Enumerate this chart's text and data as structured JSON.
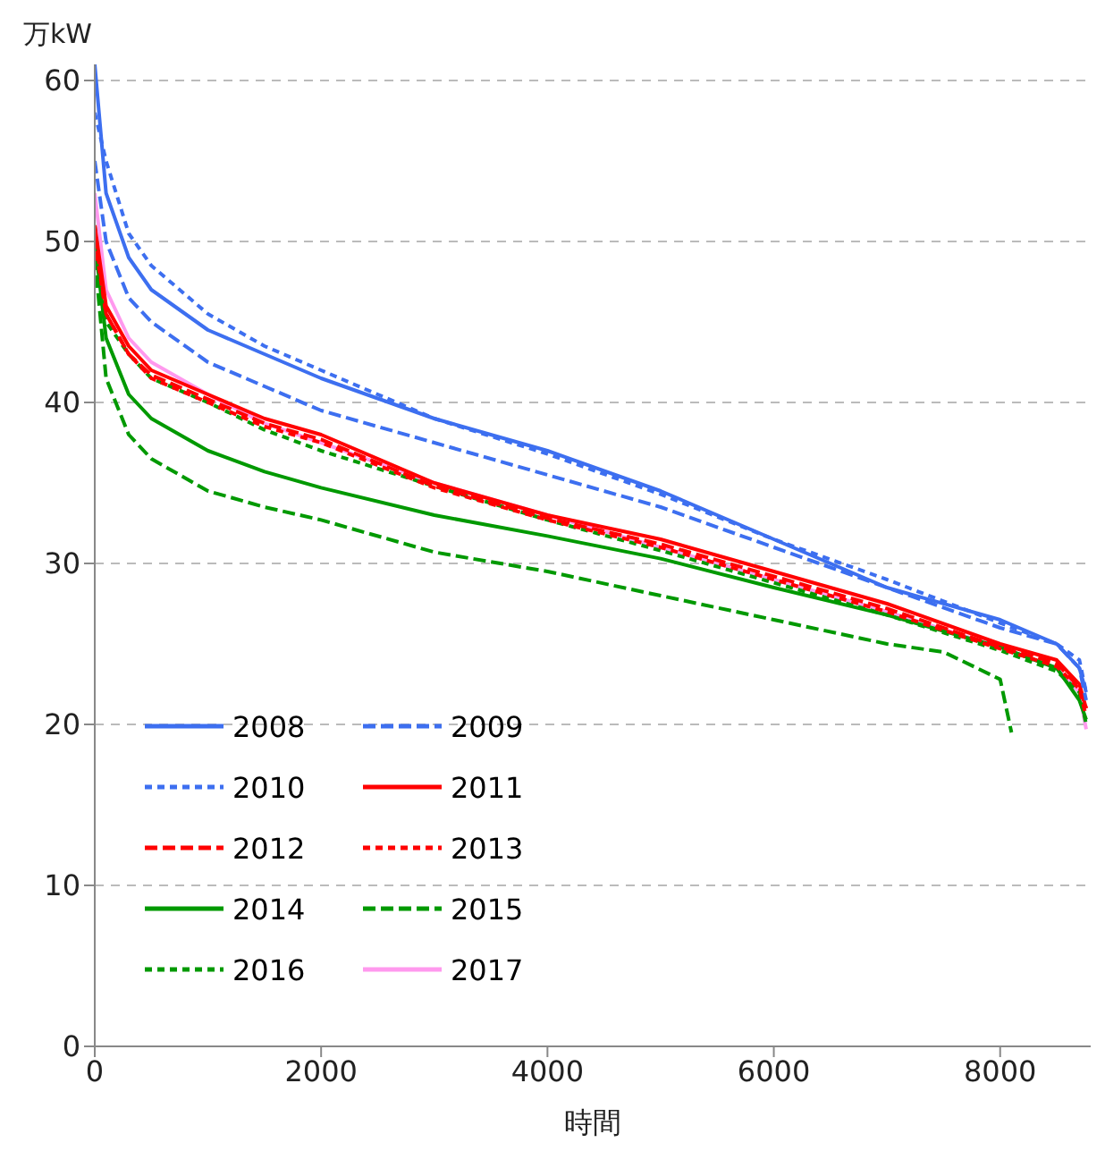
{
  "chart_data": {
    "type": "line",
    "xlabel": "時間",
    "ylabel": "万kW",
    "x": [
      0,
      100,
      300,
      500,
      1000,
      1500,
      2000,
      3000,
      4000,
      5000,
      6000,
      7000,
      8000,
      8500,
      8700,
      8760
    ],
    "xlim": [
      0,
      8800
    ],
    "xticks": [
      0,
      2000,
      4000,
      6000,
      8000
    ],
    "ylim": [
      0,
      61
    ],
    "yticks": [
      0,
      10,
      20,
      30,
      40,
      50,
      60
    ],
    "grid": "y",
    "legend": "bottom left",
    "marker": "none",
    "series": [
      {
        "name": "2008",
        "color": "#3d6ff0",
        "line_style": "solid",
        "values": [
          61,
          53,
          49,
          47,
          44.5,
          43,
          41.5,
          39,
          37,
          34.5,
          31.5,
          28.5,
          26.5,
          25,
          23.5,
          22
        ]
      },
      {
        "name": "2009",
        "color": "#3d6ff0",
        "line_style": "dashed",
        "values": [
          55,
          50,
          46.5,
          45,
          42.5,
          41,
          39.5,
          37.5,
          35.5,
          33.5,
          31,
          28.5,
          26,
          25,
          23.5,
          21.5
        ]
      },
      {
        "name": "2010",
        "color": "#3d6ff0",
        "line_style": "dotted",
        "values": [
          58,
          55,
          50.5,
          48.5,
          45.5,
          43.5,
          42,
          39,
          36.8,
          34.3,
          31.5,
          29,
          26.3,
          25,
          24,
          22
        ]
      },
      {
        "name": "2011",
        "color": "#ff0000",
        "line_style": "solid",
        "values": [
          51,
          46,
          43.5,
          42,
          40.5,
          39,
          38,
          35,
          33,
          31.5,
          29.5,
          27.5,
          25,
          24,
          22.5,
          21
        ]
      },
      {
        "name": "2012",
        "color": "#ff0000",
        "line_style": "dashed",
        "values": [
          50.5,
          45.5,
          43,
          41.7,
          40.2,
          38.7,
          37.7,
          34.8,
          32.8,
          31.2,
          29.2,
          27.2,
          24.8,
          23.8,
          22.3,
          21
        ]
      },
      {
        "name": "2013",
        "color": "#ff0000",
        "line_style": "dotted",
        "values": [
          50,
          45.5,
          43,
          41.5,
          40,
          38.5,
          37.5,
          34.7,
          32.7,
          31,
          29,
          27,
          24.7,
          23.6,
          22.2,
          20.5
        ]
      },
      {
        "name": "2014",
        "color": "#009900",
        "line_style": "solid",
        "values": [
          50,
          44,
          40.5,
          39,
          37,
          35.7,
          34.7,
          33,
          31.7,
          30.3,
          28.5,
          26.8,
          24.8,
          23.5,
          21.5,
          20.3
        ]
      },
      {
        "name": "2015",
        "color": "#009900",
        "line_style": "dashed",
        "x": [
          0,
          100,
          300,
          500,
          1000,
          1500,
          2000,
          3000,
          4000,
          5000,
          6000,
          7000,
          7500,
          8000,
          8100
        ],
        "values": [
          49,
          41.5,
          38,
          36.5,
          34.5,
          33.5,
          32.7,
          30.7,
          29.5,
          28,
          26.5,
          25,
          24.5,
          22.8,
          19.5
        ]
      },
      {
        "name": "2016",
        "color": "#009900",
        "line_style": "dotted",
        "values": [
          51,
          45,
          43,
          41.5,
          40,
          38.3,
          37,
          34.8,
          32.7,
          30.8,
          28.8,
          26.8,
          24.6,
          23.3,
          22,
          20
        ]
      },
      {
        "name": "2017",
        "color": "#ff99ee",
        "line_style": "solid",
        "values": [
          53,
          47,
          44,
          42.5,
          40.5,
          38.7,
          37.5,
          35,
          33,
          31,
          29,
          27,
          24.8,
          23.5,
          22,
          19.7
        ]
      }
    ]
  }
}
